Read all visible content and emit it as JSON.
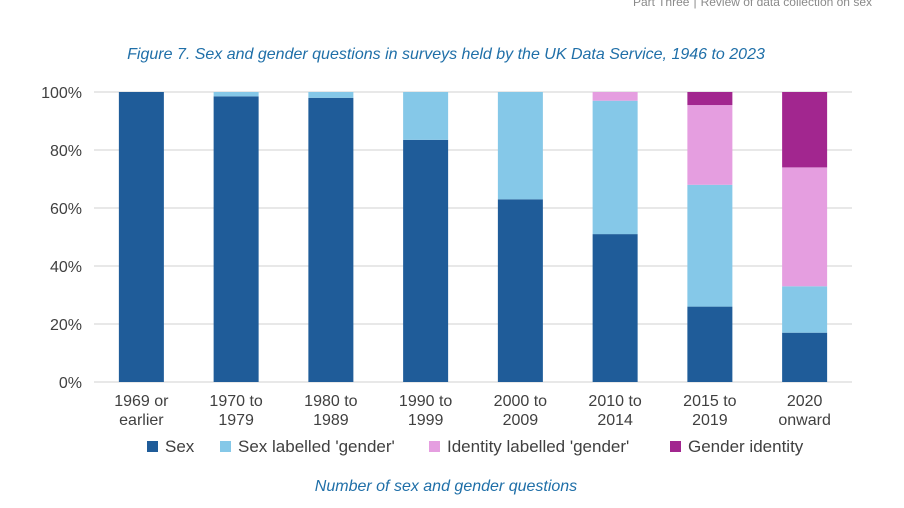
{
  "header": {
    "part": "Part Three",
    "separator": "|",
    "section": "Review of data collection on sex"
  },
  "figure_title": "Figure 7. Sex and gender questions in surveys held by the UK Data Service, 1946 to 2023",
  "caption": "Number of sex and gender questions",
  "colors": {
    "sex": "#1f5c99",
    "sex_gender": "#85c8e8",
    "identity_gender": "#e59ee0",
    "gender_identity": "#a2268f",
    "grid": "#d9d9d9",
    "axis_text": "#404040"
  },
  "chart_data": {
    "type": "bar",
    "stacked": true,
    "title": "Figure 7. Sex and gender questions in surveys held by the UK Data Service, 1946 to 2023",
    "xlabel": "",
    "ylabel": "",
    "ylim": [
      0,
      100
    ],
    "yticks": [
      "0%",
      "20%",
      "40%",
      "60%",
      "80%",
      "100%"
    ],
    "legend_position": "bottom",
    "categories": [
      [
        "1969 or",
        "earlier"
      ],
      [
        "1970 to",
        "1979"
      ],
      [
        "1980 to",
        "1989"
      ],
      [
        "1990 to",
        "1999"
      ],
      [
        "2000 to",
        "2009"
      ],
      [
        "2010 to",
        "2014"
      ],
      [
        "2015 to",
        "2019"
      ],
      [
        "2020",
        "onward"
      ]
    ],
    "series": [
      {
        "name": "Sex",
        "color": "#1f5c99",
        "values": [
          100,
          98.5,
          98,
          83.5,
          63,
          51,
          26,
          17
        ]
      },
      {
        "name": "Sex labelled 'gender'",
        "color": "#85c8e8",
        "values": [
          0,
          1.5,
          2,
          16.5,
          37,
          46,
          42,
          16
        ]
      },
      {
        "name": "Identity labelled 'gender'",
        "color": "#e59ee0",
        "values": [
          0,
          0,
          0,
          0,
          0,
          3,
          27.5,
          41
        ]
      },
      {
        "name": "Gender identity",
        "color": "#a2268f",
        "values": [
          0,
          0,
          0,
          0,
          0,
          0,
          4.5,
          26
        ]
      }
    ]
  }
}
